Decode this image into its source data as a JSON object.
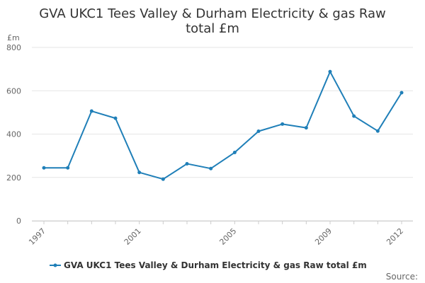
{
  "chart_data": {
    "type": "line",
    "title_lines": [
      "GVA UKC1 Tees Valley & Durham Electricity & gas Raw",
      "total £m"
    ],
    "unit_label": "£m",
    "x": [
      1997,
      1998,
      1999,
      2000,
      2001,
      2002,
      2003,
      2004,
      2005,
      2006,
      2007,
      2008,
      2009,
      2010,
      2011,
      2012
    ],
    "x_tick_labels": [
      "1997",
      "2001",
      "2005",
      "2009",
      "2012"
    ],
    "ylim": [
      0,
      800
    ],
    "y_ticks": [
      0,
      200,
      400,
      600,
      800
    ],
    "grid": true,
    "legend_position": "bottom",
    "series": [
      {
        "name": "GVA UKC1 Tees Valley & Durham Electricity & gas Raw total £m",
        "color": "#1f7fb8",
        "values": [
          244,
          244,
          506,
          473,
          223,
          192,
          263,
          241,
          315,
          413,
          446,
          429,
          688,
          483,
          414,
          591
        ]
      }
    ]
  },
  "source_label": "Source:"
}
